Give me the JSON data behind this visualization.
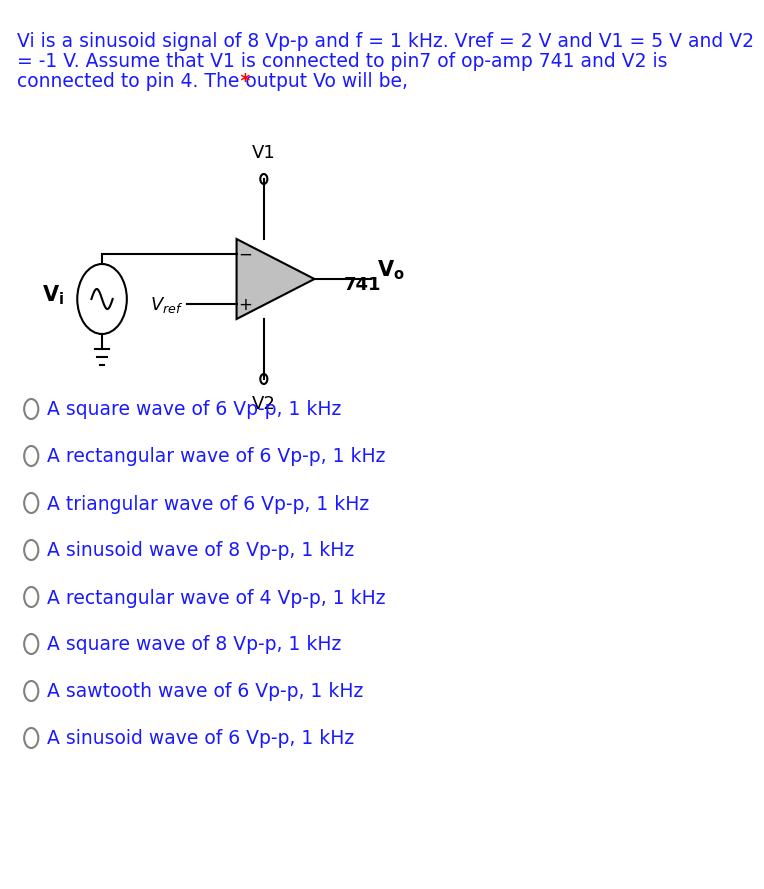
{
  "title_text": "Vi is a sinusoid signal of 8 Vp-p and f = 1 kHz. Vref = 2 V and V1 = 5 V and V2\n= -1 V. Assume that V1 is connected to pin7 of op-amp 741 and V2 is\nconnected to pin 4. The output Vo will be,",
  "title_asterisk": " *",
  "title_color": "#1a1aff",
  "asterisk_color": "#ff0000",
  "options": [
    "A square wave of 6 Vp-p, 1 kHz",
    "A rectangular wave of 6 Vp-p, 1 kHz",
    "A triangular wave of 6 Vp-p, 1 kHz",
    "A sinusoid wave of 8 Vp-p, 1 kHz",
    "A rectangular wave of 4 Vp-p, 1 kHz",
    "A square wave of 8 Vp-p, 1 kHz",
    "A sawtooth wave of 6 Vp-p, 1 kHz",
    "A sinusoid wave of 6 Vp-p, 1 kHz"
  ],
  "options_color": "#1a1aff",
  "background_color": "#ffffff",
  "circuit_color": "#000000",
  "opamp_fill": "#c0c0c0",
  "option_font_size": 13.5,
  "title_font_size": 13.5
}
